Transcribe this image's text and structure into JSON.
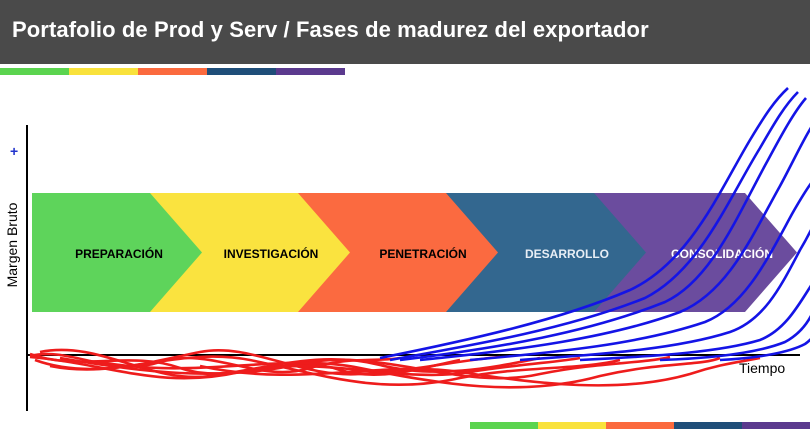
{
  "header": {
    "title": "Portafolio de Prod y Serv / Fases de madurez del exportador"
  },
  "stripes": [
    "#5bd44f",
    "#f9e23c",
    "#fb6a3e",
    "#1f4e79",
    "#5b3a8e"
  ],
  "axes": {
    "plus": "+",
    "y_label": "Margen Bruto",
    "x_label": "Tiempo"
  },
  "phases": [
    {
      "label": "PREPARACIÓN",
      "color": "#5ed45b",
      "text_color": "#000000"
    },
    {
      "label": "INVESTIGACIÓN",
      "color": "#fae33f",
      "text_color": "#000000"
    },
    {
      "label": "PENETRACIÓN",
      "color": "#fb6a40",
      "text_color": "#000000"
    },
    {
      "label": "DESARROLLO",
      "color": "#33678f",
      "text_color": "#e8eef5"
    },
    {
      "label": "CONSOLIDACIÓN",
      "color": "#6b4c9e",
      "text_color": "#ffffff"
    }
  ],
  "curve_colors": {
    "red": "#ee1c1c",
    "blue": "#1414e6"
  }
}
